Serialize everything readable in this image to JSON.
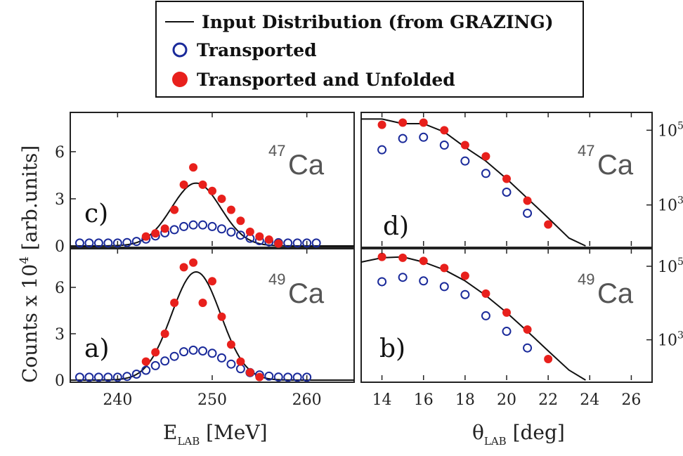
{
  "legend": {
    "entries": [
      {
        "label": "Input Distribution (from GRAZING)",
        "marker": "line"
      },
      {
        "label": "Transported",
        "marker": "open-circle"
      },
      {
        "label": "Transported and Unfolded",
        "marker": "filled-circle"
      }
    ]
  },
  "colors": {
    "line": "#111111",
    "transported": "#1a2a9a",
    "unfolded": "#e8201c"
  },
  "axes": {
    "y_left_label_prefix": "Counts x 10",
    "y_left_label_exp": "4",
    "y_left_label_suffix": " [arb.units]",
    "x_left_label_main": "E",
    "x_left_label_sub": "LAB",
    "x_left_label_unit": " [MeV]",
    "x_right_label_main": "θ",
    "x_right_label_sub": "LAB",
    "x_right_label_unit": " [deg]",
    "x_left_ticks": [
      "240",
      "250",
      "260"
    ],
    "x_right_ticks": [
      "14",
      "16",
      "18",
      "20",
      "22",
      "24",
      "26"
    ],
    "y_left_ticks": [
      "0",
      "3",
      "6"
    ],
    "y_right_tick_base": "10",
    "y_right_tick_exps": [
      "3",
      "5"
    ]
  },
  "chart_data": [
    {
      "panel": "c)",
      "nuclide_mass": "47",
      "nuclide_symbol": "Ca",
      "type": "scatter",
      "xlabel": "E_LAB [MeV]",
      "ylabel": "Counts x 10^4 [arb.units]",
      "xlim": [
        235,
        265
      ],
      "ylim": [
        0,
        8.5
      ],
      "input_distribution": {
        "type": "gaussian",
        "amplitude": 4.0,
        "center": 248.3,
        "sigma": 2.6
      },
      "transported": {
        "x": [
          236,
          237,
          238,
          239,
          240,
          241,
          242,
          243,
          244,
          245,
          246,
          247,
          248,
          249,
          250,
          251,
          252,
          253,
          254,
          255,
          256,
          257,
          258,
          259,
          260,
          261
        ],
        "y": [
          0.05,
          0.05,
          0.05,
          0.05,
          0.05,
          0.08,
          0.15,
          0.3,
          0.5,
          0.7,
          0.9,
          1.1,
          1.2,
          1.2,
          1.1,
          0.95,
          0.75,
          0.55,
          0.35,
          0.2,
          0.12,
          0.07,
          0.05,
          0.05,
          0.05,
          0.05
        ]
      },
      "unfolded": {
        "x": [
          243,
          244,
          245,
          246,
          247,
          248,
          249,
          250,
          251,
          252,
          253,
          254,
          255,
          256,
          257
        ],
        "y": [
          0.6,
          0.8,
          1.1,
          2.3,
          3.9,
          5.0,
          3.9,
          3.5,
          3.0,
          2.3,
          1.6,
          0.9,
          0.6,
          0.4,
          0.15
        ]
      }
    },
    {
      "panel": "a)",
      "nuclide_mass": "49",
      "nuclide_symbol": "Ca",
      "type": "scatter",
      "xlabel": "E_LAB [MeV]",
      "ylabel": "Counts x 10^4 [arb.units]",
      "xlim": [
        235,
        265
      ],
      "ylim": [
        0,
        8.5
      ],
      "input_distribution": {
        "type": "gaussian",
        "amplitude": 7.0,
        "center": 248.3,
        "sigma": 2.6
      },
      "transported": {
        "x": [
          236,
          237,
          238,
          239,
          240,
          241,
          242,
          243,
          244,
          245,
          246,
          247,
          248,
          249,
          250,
          251,
          252,
          253,
          254,
          255,
          256,
          257,
          258,
          259,
          260
        ],
        "y": [
          0.05,
          0.05,
          0.05,
          0.05,
          0.05,
          0.1,
          0.25,
          0.5,
          0.8,
          1.1,
          1.4,
          1.7,
          1.8,
          1.75,
          1.6,
          1.3,
          0.9,
          0.6,
          0.35,
          0.2,
          0.12,
          0.06,
          0.05,
          0.05,
          0.05
        ]
      },
      "unfolded": {
        "x": [
          243,
          244,
          245,
          246,
          247,
          248,
          249,
          250,
          251,
          252,
          253,
          254,
          255
        ],
        "y": [
          1.2,
          1.8,
          3.0,
          5.0,
          7.3,
          7.6,
          5.0,
          6.4,
          4.1,
          2.3,
          1.2,
          0.5,
          0.2
        ]
      }
    },
    {
      "panel": "d)",
      "nuclide_mass": "47",
      "nuclide_symbol": "Ca",
      "type": "scatter",
      "xlabel": "θ_LAB [deg]",
      "yscale": "log",
      "xlim": [
        13,
        27
      ],
      "ylim": [
        80,
        300000
      ],
      "input_distribution": {
        "x": [
          13,
          14,
          15,
          16,
          17,
          18,
          19,
          20,
          21,
          22,
          23,
          23.8
        ],
        "y": [
          200000,
          200000,
          150000,
          150000,
          90000,
          35000,
          15000,
          5000,
          1500,
          450,
          130,
          80
        ]
      },
      "transported": {
        "x": [
          14,
          15,
          16,
          17,
          18,
          19,
          20,
          21
        ],
        "y": [
          30000,
          60000,
          65000,
          40000,
          15000,
          7000,
          2200,
          600
        ]
      },
      "unfolded": {
        "x": [
          14,
          15,
          16,
          17,
          18,
          19,
          20,
          21,
          22
        ],
        "y": [
          140000,
          160000,
          160000,
          100000,
          40000,
          20000,
          5000,
          1300,
          300
        ]
      }
    },
    {
      "panel": "b)",
      "nuclide_mass": "49",
      "nuclide_symbol": "Ca",
      "type": "scatter",
      "xlabel": "θ_LAB [deg]",
      "yscale": "log",
      "xlim": [
        13,
        27
      ],
      "ylim": [
        80,
        300000
      ],
      "input_distribution": {
        "x": [
          13,
          14,
          15,
          16,
          17,
          18,
          19,
          20,
          21,
          22,
          23,
          23.8
        ],
        "y": [
          130000,
          170000,
          180000,
          130000,
          80000,
          40000,
          16000,
          5500,
          1700,
          500,
          150,
          80
        ]
      },
      "transported": {
        "x": [
          14,
          15,
          16,
          17,
          18,
          19,
          20,
          21
        ],
        "y": [
          38000,
          50000,
          40000,
          28000,
          17000,
          4500,
          1700,
          600
        ]
      },
      "unfolded": {
        "x": [
          14,
          15,
          16,
          17,
          18,
          19,
          20,
          21,
          22
        ],
        "y": [
          180000,
          170000,
          140000,
          90000,
          55000,
          18000,
          5500,
          1900,
          300
        ]
      }
    }
  ]
}
